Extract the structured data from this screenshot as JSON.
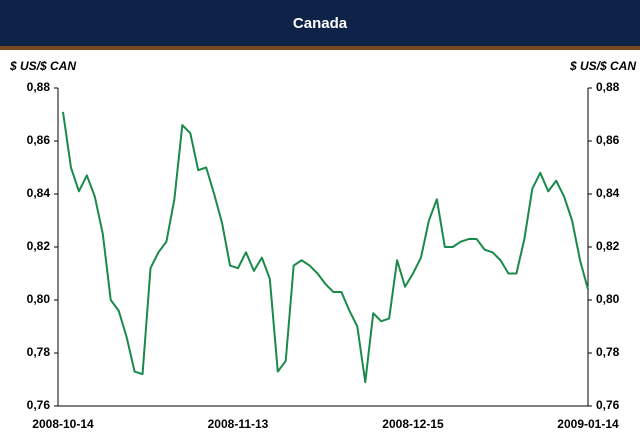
{
  "chart_data": {
    "type": "line",
    "title": "Canada",
    "ylabel": "$ US/$ CAN",
    "y2label": "$ US/$ CAN",
    "categories": [
      "2008-10-14",
      null,
      null,
      null,
      null,
      null,
      null,
      null,
      null,
      null,
      null,
      null,
      null,
      null,
      null,
      null,
      null,
      null,
      null,
      null,
      null,
      null,
      "2008-11-13",
      null,
      null,
      null,
      null,
      null,
      null,
      null,
      null,
      null,
      null,
      null,
      null,
      null,
      null,
      null,
      null,
      null,
      null,
      null,
      null,
      null,
      "2008-12-15",
      null,
      null,
      null,
      null,
      null,
      null,
      null,
      null,
      null,
      null,
      null,
      null,
      null,
      null,
      null,
      null,
      null,
      null,
      null,
      null,
      null,
      "2009-01-14"
    ],
    "series": [
      {
        "name": "Canada",
        "color": "#1a8a4a",
        "values": [
          0.871,
          0.85,
          0.841,
          0.847,
          0.839,
          0.825,
          0.8,
          0.796,
          0.786,
          0.773,
          0.772,
          0.812,
          0.818,
          0.822,
          0.838,
          0.866,
          0.863,
          0.849,
          0.85,
          0.84,
          0.829,
          0.813,
          0.812,
          0.818,
          0.811,
          0.816,
          0.808,
          0.773,
          0.777,
          0.813,
          0.815,
          0.813,
          0.81,
          0.806,
          0.803,
          0.803,
          0.796,
          0.79,
          0.769,
          0.795,
          0.792,
          0.793,
          0.815,
          0.805,
          0.81,
          0.816,
          0.83,
          0.838,
          0.82,
          0.82,
          0.822,
          0.823,
          0.823,
          0.819,
          0.818,
          0.815,
          0.81,
          0.81,
          0.823,
          0.842,
          0.848,
          0.841,
          0.845,
          0.839,
          0.83,
          0.815,
          0.804
        ]
      }
    ],
    "ylim": [
      0.76,
      0.88
    ],
    "yticks": [
      {
        "value": 0.76,
        "label": "0,76"
      },
      {
        "value": 0.78,
        "label": "0,78"
      },
      {
        "value": 0.8,
        "label": "0,80"
      },
      {
        "value": 0.82,
        "label": "0,82"
      },
      {
        "value": 0.84,
        "label": "0,84"
      },
      {
        "value": 0.86,
        "label": "0,86"
      },
      {
        "value": 0.88,
        "label": "0,88"
      }
    ],
    "y2lim": [
      0.76,
      0.88
    ],
    "y2ticks": [
      {
        "value": 0.76,
        "label": "0,76"
      },
      {
        "value": 0.78,
        "label": "0,78"
      },
      {
        "value": 0.8,
        "label": "0,80"
      },
      {
        "value": 0.82,
        "label": "0,82"
      },
      {
        "value": 0.84,
        "label": "0,84"
      },
      {
        "value": 0.86,
        "label": "0,86"
      },
      {
        "value": 0.88,
        "label": "0,88"
      }
    ],
    "grid": false
  }
}
